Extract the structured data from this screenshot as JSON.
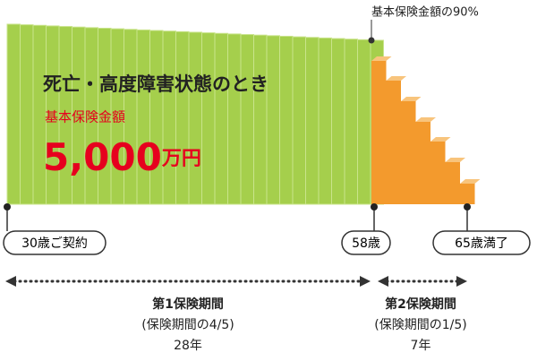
{
  "benefit": {
    "title": "死亡・高度障害状態のとき",
    "amount_label": "基本保険金額",
    "amount": "5,000",
    "amount_unit": "万円",
    "reduced_label": "基本保険金額の90%"
  },
  "timeline": [
    "30歳ご契約",
    "58歳",
    "65歳満了"
  ],
  "periods": [
    {
      "name": "第1保険期間",
      "ratio": "(保険期間の4/5)",
      "years": "28年"
    },
    {
      "name": "第2保険期間",
      "ratio": "(保険期間の1/5)",
      "years": "7年"
    }
  ]
}
